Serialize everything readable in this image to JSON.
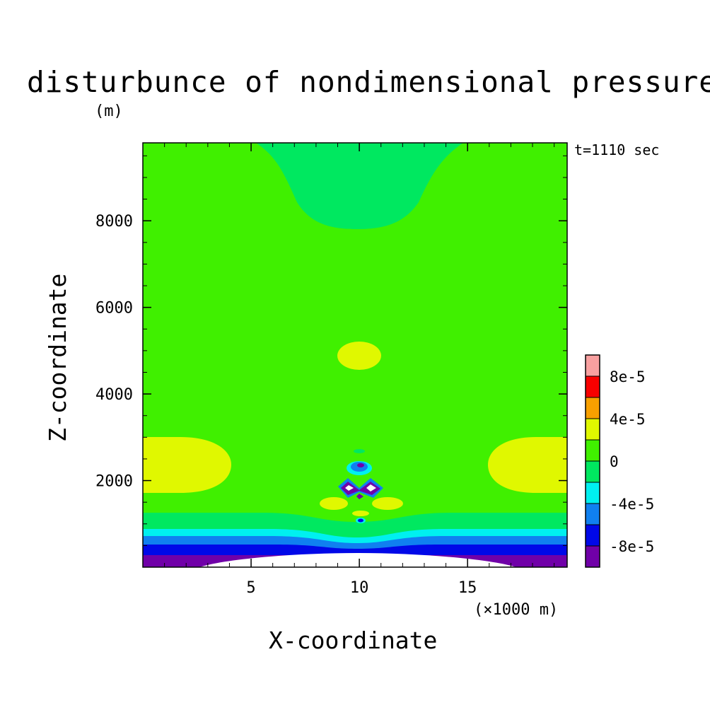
{
  "chart_data": {
    "type": "heatmap",
    "title": "disturbunce of nondimensional pressure",
    "ylabel_unit": "(m)",
    "time_label": "t=1110 sec",
    "xlabel": "X-coordinate",
    "x_unit": "(×1000 m)",
    "ylabel": "Z-coordinate",
    "xlim": [
      0,
      19.6
    ],
    "ylim": [
      0,
      9800
    ],
    "x_ticks": [
      5,
      10,
      15
    ],
    "y_ticks": [
      2000,
      4000,
      6000,
      8000
    ],
    "colorbar": {
      "levels": [
        -0.0001,
        -8e-05,
        -6e-05,
        -4e-05,
        -2e-05,
        0,
        2e-05,
        4e-05,
        6e-05,
        8e-05,
        0.0001
      ],
      "colors": [
        "#7000a8",
        "#0008e8",
        "#1080f0",
        "#00f0f0",
        "#00e860",
        "#40f000",
        "#e0f800",
        "#f8a000",
        "#f80000",
        "#f8a0a0"
      ],
      "tick_labels": [
        "-8e-5",
        "-4e-5",
        "0",
        "4e-5",
        "8e-5"
      ]
    },
    "features": [
      {
        "name": "upper band",
        "value": -1e-05,
        "x_range": [
          5.3,
          14.9
        ],
        "z_range": [
          7900,
          9800
        ]
      },
      {
        "name": "mid bubble",
        "value": 3e-05,
        "x": 10.2,
        "z": 4950
      },
      {
        "name": "left lobe",
        "value": 3e-05,
        "x": 0,
        "z": 2450
      },
      {
        "name": "right lobe",
        "value": 3e-05,
        "x": 19.6,
        "z": 2450
      },
      {
        "name": "lower boundary layer",
        "value": -9e-05,
        "z_range": [
          0,
          1300
        ]
      }
    ]
  }
}
